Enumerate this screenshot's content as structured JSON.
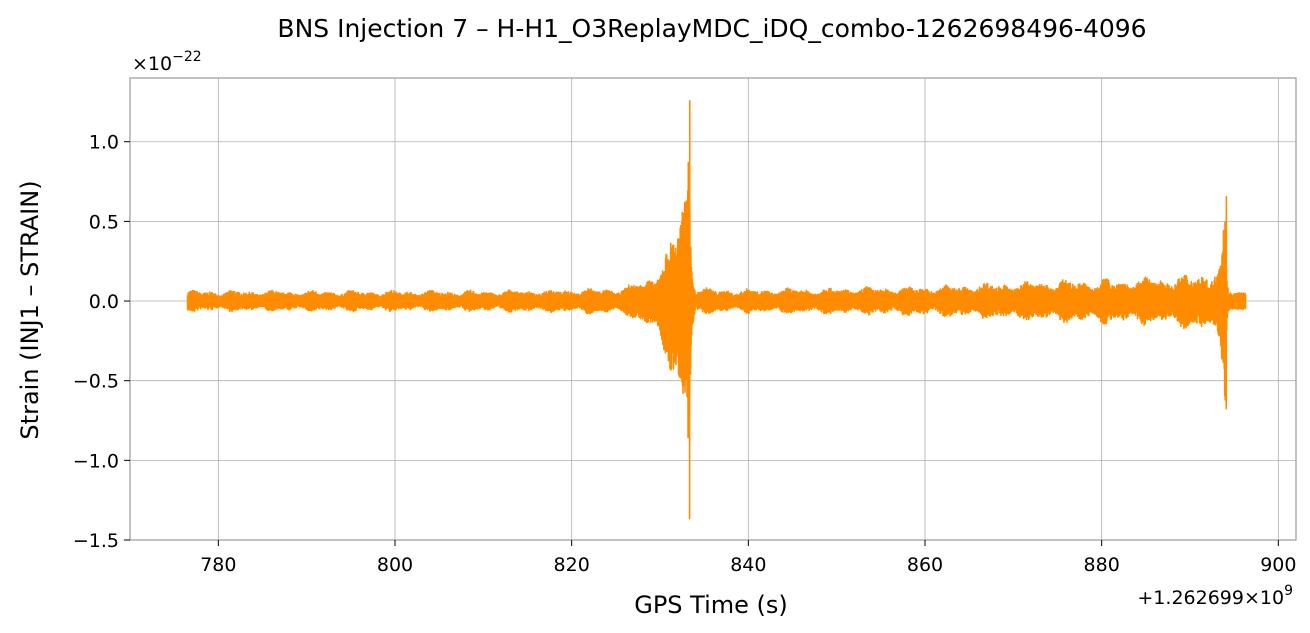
{
  "chart_data": {
    "type": "line",
    "title": "BNS Injection 7 – H-H1_O3ReplayMDC_iDQ_combo-1262698496-4096",
    "xlabel": "GPS Time (s)",
    "ylabel": "Strain (INJ1 – STRAIN)",
    "x_offset_text": "+1.262699×10",
    "x_offset_exp": "9",
    "y_scale_text": "×10",
    "y_scale_exp": "−22",
    "xlim": [
      770,
      902
    ],
    "ylim": [
      -1.5,
      1.4
    ],
    "xticks": [
      780,
      800,
      820,
      840,
      860,
      880,
      900
    ],
    "xtick_labels": [
      "780",
      "800",
      "820",
      "840",
      "860",
      "880",
      "900"
    ],
    "yticks": [
      -1.5,
      -1.0,
      -0.5,
      0.0,
      0.5,
      1.0
    ],
    "ytick_labels": [
      "−1.5",
      "−1.0",
      "−0.5",
      "0.0",
      "0.5",
      "1.0"
    ],
    "grid": true,
    "line_color": "#ff8c00",
    "series": [
      {
        "x_range": [
          776.5,
          896.3
        ],
        "envelope": {
          "x": [
            776.5,
            790,
            800,
            810,
            820,
            826,
            829,
            831,
            832,
            833,
            833.3,
            833.6,
            834,
            836,
            840,
            850,
            860,
            870,
            880,
            885,
            890,
            892,
            893.5,
            894.0,
            894.2,
            894.5,
            896.3
          ],
          "upper": [
            0.07,
            0.07,
            0.07,
            0.07,
            0.08,
            0.09,
            0.18,
            0.35,
            0.58,
            0.9,
            1.26,
            0.3,
            0.1,
            0.08,
            0.08,
            0.09,
            0.1,
            0.13,
            0.15,
            0.16,
            0.18,
            0.2,
            0.3,
            0.66,
            0.12,
            0.07,
            0.07
          ],
          "lower": [
            -0.07,
            -0.07,
            -0.07,
            -0.07,
            -0.08,
            -0.09,
            -0.2,
            -0.45,
            -0.62,
            -1.0,
            -1.37,
            -0.35,
            -0.1,
            -0.08,
            -0.08,
            -0.09,
            -0.1,
            -0.13,
            -0.15,
            -0.16,
            -0.18,
            -0.22,
            -0.35,
            -0.68,
            -0.12,
            -0.07,
            -0.07
          ]
        }
      }
    ]
  }
}
